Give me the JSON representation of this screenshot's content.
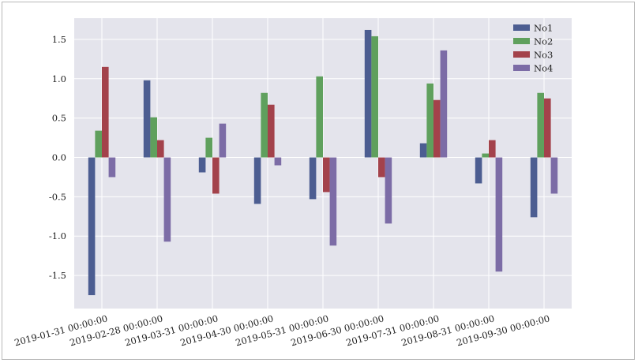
{
  "chart_data": {
    "type": "bar",
    "categories": [
      "2019-01-31 00:00:00",
      "2019-02-28 00:00:00",
      "2019-03-31 00:00:00",
      "2019-04-30 00:00:00",
      "2019-05-31 00:00:00",
      "2019-06-30 00:00:00",
      "2019-07-31 00:00:00",
      "2019-08-31 00:00:00",
      "2019-09-30 00:00:00"
    ],
    "series": [
      {
        "name": "No1",
        "color": "#4C5D91",
        "values": [
          -1.75,
          0.98,
          -0.19,
          -0.59,
          -0.53,
          1.62,
          0.18,
          -0.33,
          -0.76
        ]
      },
      {
        "name": "No2",
        "color": "#5FA05D",
        "values": [
          0.34,
          0.51,
          0.25,
          0.82,
          1.03,
          1.54,
          0.94,
          0.05,
          0.82
        ]
      },
      {
        "name": "No3",
        "color": "#A3424B",
        "values": [
          1.15,
          0.22,
          -0.46,
          0.67,
          -0.44,
          -0.25,
          0.73,
          0.22,
          0.75
        ]
      },
      {
        "name": "No4",
        "color": "#7C6CA6",
        "values": [
          -0.25,
          -1.07,
          0.43,
          -0.1,
          -1.12,
          -0.84,
          1.36,
          -1.45,
          -0.46
        ]
      }
    ],
    "yticks": [
      "1.5",
      "1.0",
      "0.5",
      "0.0",
      "-0.5",
      "-1.0",
      "-1.5"
    ],
    "ytick_values": [
      1.5,
      1.0,
      0.5,
      0.0,
      -0.5,
      -1.0,
      -1.5
    ],
    "ylim": [
      -1.92,
      1.77
    ],
    "grid": true,
    "legend_position": "top-right",
    "background": "#E4E4EC",
    "grid_color": "#FFFFFF",
    "xlabel_rotation_deg": -15
  }
}
